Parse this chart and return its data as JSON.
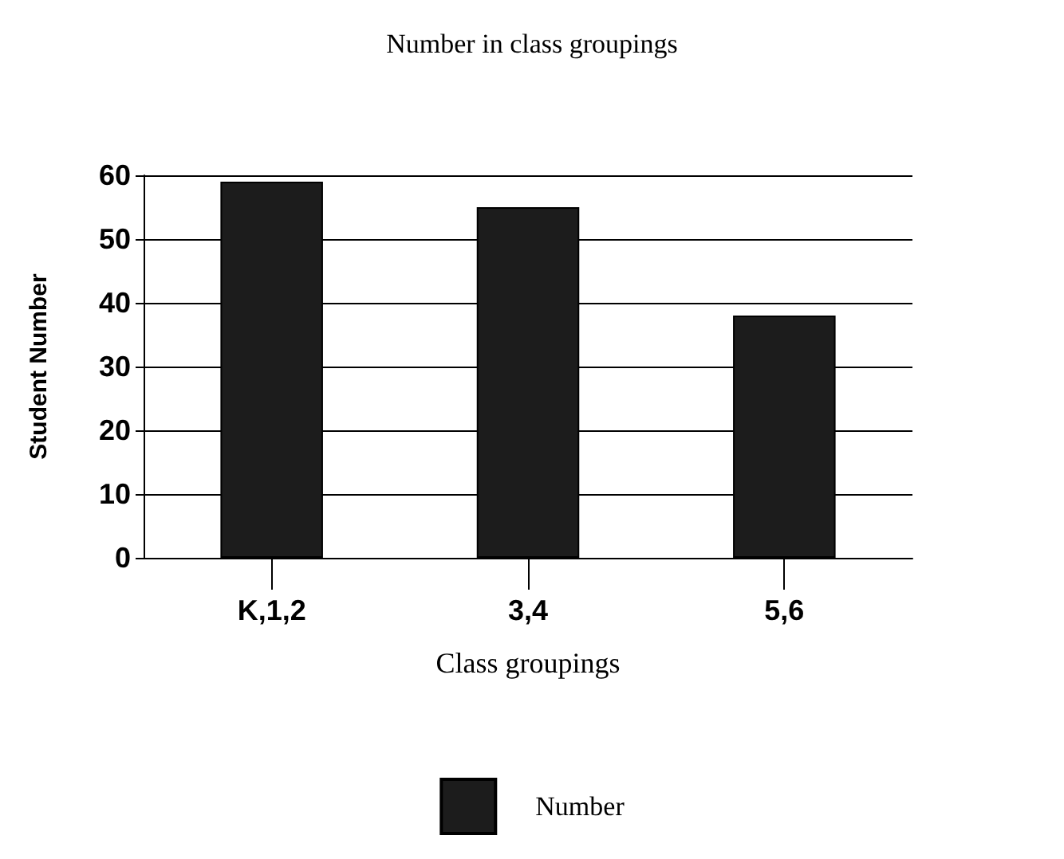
{
  "chart_data": {
    "type": "bar",
    "title": "Number in class groupings",
    "xlabel": "Class groupings",
    "ylabel": "Student Number",
    "categories": [
      "K,1,2",
      "3,4",
      "5,6"
    ],
    "series": [
      {
        "name": "Number",
        "color": "#1c1c1c",
        "values": [
          59,
          55,
          38
        ]
      }
    ],
    "ylim": [
      0,
      60
    ],
    "yticks": [
      0,
      10,
      20,
      30,
      40,
      50,
      60
    ],
    "grid": "y",
    "legend": "bottom"
  }
}
